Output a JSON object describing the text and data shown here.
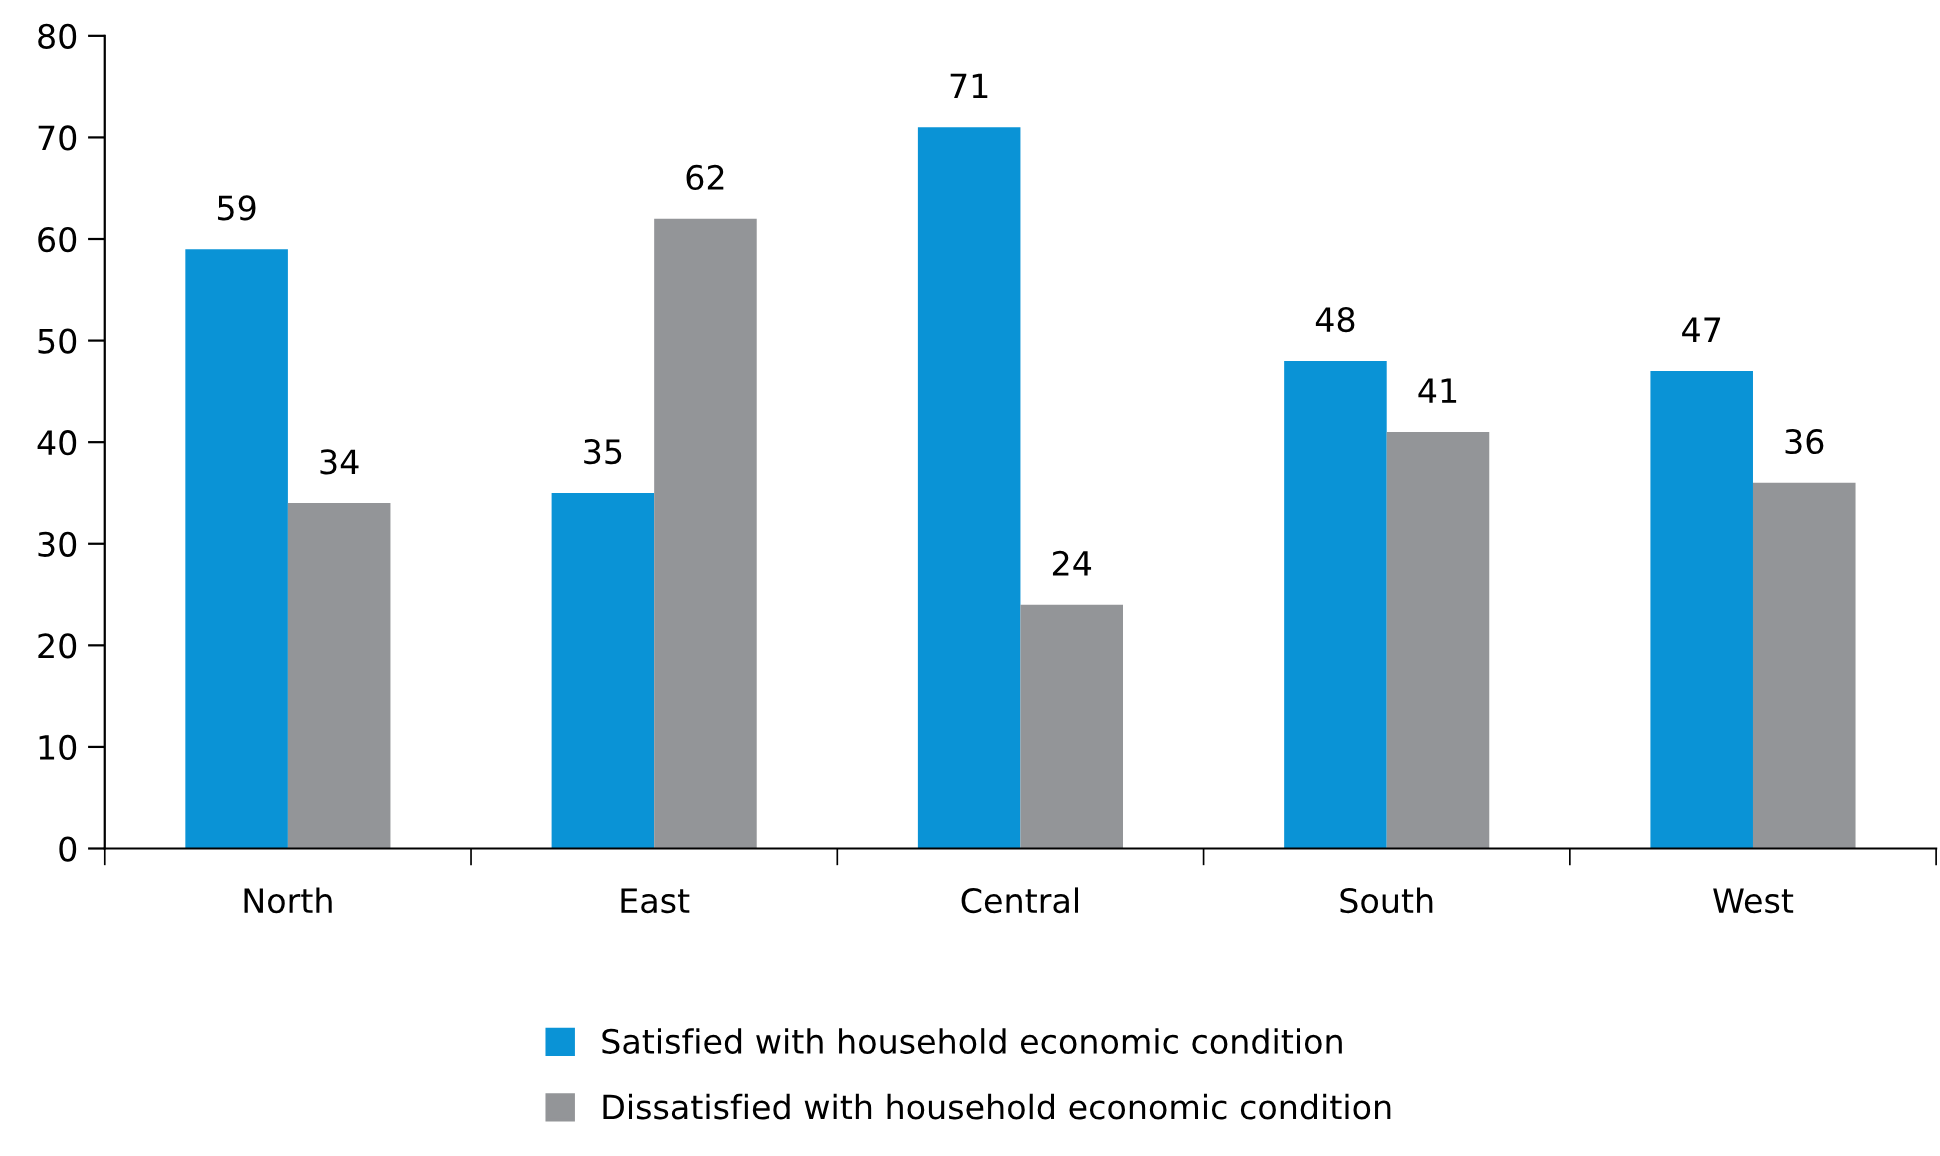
{
  "chart_data": {
    "type": "bar",
    "categories": [
      "North",
      "East",
      "Central",
      "South",
      "West"
    ],
    "series": [
      {
        "name": "Satisfied with household economic condition",
        "color": "#0a93d6",
        "values": [
          59,
          35,
          71,
          48,
          47
        ]
      },
      {
        "name": "Dissatisfied with household economic condition",
        "color": "#939598",
        "values": [
          34,
          62,
          24,
          41,
          36
        ]
      }
    ],
    "ylim": [
      0,
      80
    ],
    "yticks": [
      0,
      10,
      20,
      30,
      40,
      50,
      60,
      70,
      80
    ],
    "data_labels": true,
    "grid": false,
    "legend": "bottom"
  }
}
